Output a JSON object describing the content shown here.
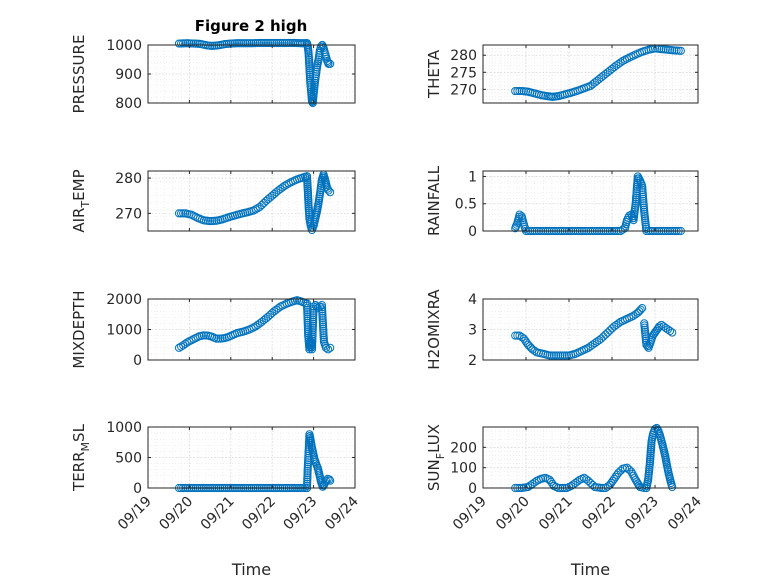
{
  "figure_title": "Figure 2 high",
  "colors": {
    "marker": "#0072BD",
    "axis": "#262626",
    "grid": "#d9d9d9",
    "background": "#ffffff"
  },
  "chart_data": [
    {
      "type": "scatter",
      "id": "pressure",
      "ylabel": "PRESSURE",
      "ylabel_sub": "",
      "ylim": [
        800,
        1000
      ],
      "yticks": [
        800,
        900,
        1000
      ],
      "ytick_labels": [
        "800",
        "900",
        "1000"
      ],
      "xlim": [
        0,
        5
      ],
      "xticks": [
        0,
        1,
        2,
        3,
        4,
        5
      ],
      "xtick_labels": [
        "09/19",
        "09/20",
        "09/21",
        "09/22",
        "09/23",
        "09/24"
      ],
      "xticks_visible": false,
      "xlabel": "",
      "grid": "dotted",
      "segments": [
        {
          "x": [
            0.75,
            0.95,
            1.1,
            1.25,
            1.35,
            1.45,
            1.55,
            1.65,
            1.75,
            1.85,
            2.0,
            2.15,
            2.3,
            2.5,
            2.7,
            2.9,
            3.1,
            3.3,
            3.5,
            3.72,
            3.84
          ],
          "y": [
            1005,
            1006,
            1005,
            1004,
            1001,
            998,
            997,
            998,
            1000,
            1003,
            1005,
            1006,
            1006,
            1006,
            1007,
            1007,
            1007,
            1007,
            1007,
            1006,
            1006
          ]
        },
        {
          "x": [
            3.84,
            3.86,
            3.88,
            3.9,
            3.92,
            3.94,
            3.96,
            3.98,
            4.0,
            4.03,
            4.06,
            4.09,
            4.12,
            4.15,
            4.18,
            4.21,
            4.24,
            4.27,
            4.3,
            4.33,
            4.36,
            4.4
          ],
          "y": [
            1006,
            995,
            970,
            920,
            870,
            840,
            808,
            800,
            830,
            870,
            900,
            930,
            950,
            980,
            995,
            1000,
            990,
            975,
            960,
            945,
            935,
            935
          ]
        }
      ]
    },
    {
      "type": "scatter",
      "id": "theta",
      "ylabel": "THETA",
      "ylabel_sub": "",
      "ylim": [
        266,
        283
      ],
      "yticks": [
        270,
        275,
        280
      ],
      "ytick_labels": [
        "270",
        "275",
        "280"
      ],
      "xlim": [
        0,
        5
      ],
      "xticks": [
        0,
        1,
        2,
        3,
        4,
        5
      ],
      "xtick_labels": [
        "09/19",
        "09/20",
        "09/21",
        "09/22",
        "09/23",
        "09/24"
      ],
      "xticks_visible": false,
      "xlabel": "",
      "grid": "dotted",
      "segments": [
        {
          "x": [
            0.75,
            0.9,
            1.05,
            1.2,
            1.35,
            1.5,
            1.62,
            1.75,
            1.9,
            2.05,
            2.2,
            2.35,
            2.5,
            2.65,
            2.8,
            2.95,
            3.1,
            3.25,
            3.4,
            3.55,
            3.7,
            3.85,
            4.0,
            4.15,
            4.3,
            4.45,
            4.6
          ],
          "y": [
            269.5,
            269.5,
            269.3,
            268.8,
            268.3,
            268.0,
            267.8,
            268.0,
            268.5,
            269.0,
            269.6,
            270.3,
            271.0,
            272.5,
            274.0,
            275.5,
            277.0,
            278.3,
            279.3,
            280.2,
            281.0,
            281.6,
            282.0,
            281.8,
            281.6,
            281.4,
            281.3
          ]
        }
      ]
    },
    {
      "type": "scatter",
      "id": "air_temp",
      "ylabel": "AIR",
      "ylabel_sub": "T",
      "ylabel_rest": "EMP",
      "ylim": [
        265,
        282
      ],
      "yticks": [
        270,
        280
      ],
      "ytick_labels": [
        "270",
        "280"
      ],
      "xlim": [
        0,
        5
      ],
      "xticks": [
        0,
        1,
        2,
        3,
        4,
        5
      ],
      "xtick_labels": [
        "09/19",
        "09/20",
        "09/21",
        "09/22",
        "09/23",
        "09/24"
      ],
      "xticks_visible": false,
      "xlabel": "",
      "grid": "dotted",
      "segments": [
        {
          "x": [
            0.75,
            0.9,
            1.05,
            1.2,
            1.35,
            1.5,
            1.65,
            1.8,
            1.95,
            2.1,
            2.25,
            2.4,
            2.55,
            2.7,
            2.85,
            3.0,
            3.15,
            3.3,
            3.45,
            3.6,
            3.75,
            3.84
          ],
          "y": [
            270.0,
            270.0,
            269.6,
            268.7,
            268.0,
            267.8,
            267.9,
            268.3,
            268.9,
            269.4,
            269.9,
            270.3,
            270.8,
            271.8,
            273.5,
            275.0,
            276.5,
            277.8,
            278.8,
            279.6,
            280.2,
            280.5
          ]
        },
        {
          "x": [
            3.84,
            3.86,
            3.88,
            3.9,
            3.93,
            3.96,
            4.0,
            4.04,
            4.08,
            4.12,
            4.16,
            4.2,
            4.24,
            4.28,
            4.32,
            4.36,
            4.4
          ],
          "y": [
            280.5,
            276.5,
            272.0,
            268.5,
            266.5,
            265.3,
            266.5,
            268.5,
            270.5,
            273.0,
            276.0,
            279.5,
            281.0,
            279.5,
            277.5,
            276.5,
            276.0
          ]
        }
      ]
    },
    {
      "type": "scatter",
      "id": "rainfall",
      "ylabel": "RAINFALL",
      "ylabel_sub": "",
      "ylim": [
        0,
        1.1
      ],
      "yticks": [
        0,
        0.5,
        1
      ],
      "ytick_labels": [
        "0",
        "0.5",
        "1"
      ],
      "xlim": [
        0,
        5
      ],
      "xticks": [
        0,
        1,
        2,
        3,
        4,
        5
      ],
      "xtick_labels": [
        "09/19",
        "09/20",
        "09/21",
        "09/22",
        "09/23",
        "09/24"
      ],
      "xticks_visible": false,
      "xlabel": "",
      "grid": "dotted",
      "segments": [
        {
          "x": [
            0.75,
            0.8,
            0.85,
            0.9,
            0.95,
            1.0,
            1.5,
            2.0,
            2.5,
            3.0,
            3.2,
            3.3,
            3.35,
            3.4,
            3.45,
            3.5,
            3.55,
            3.6,
            3.65,
            3.7,
            3.75,
            3.8,
            3.85,
            4.0,
            4.2,
            4.4,
            4.6
          ],
          "y": [
            0.05,
            0.15,
            0.3,
            0.27,
            0.12,
            0.0,
            0.0,
            0.0,
            0.0,
            0.0,
            0.0,
            0.05,
            0.2,
            0.28,
            0.3,
            0.2,
            0.5,
            1.0,
            0.93,
            0.83,
            0.35,
            0.0,
            0.0,
            0.0,
            0.0,
            0.0,
            0.0
          ]
        }
      ]
    },
    {
      "type": "scatter",
      "id": "mixdepth",
      "ylabel": "MIXDEPTH",
      "ylabel_sub": "",
      "ylim": [
        0,
        2000
      ],
      "yticks": [
        0,
        1000,
        2000
      ],
      "ytick_labels": [
        "0",
        "1000",
        "2000"
      ],
      "xlim": [
        0,
        5
      ],
      "xticks": [
        0,
        1,
        2,
        3,
        4,
        5
      ],
      "xtick_labels": [
        "09/19",
        "09/20",
        "09/21",
        "09/22",
        "09/23",
        "09/24"
      ],
      "xticks_visible": false,
      "xlabel": "",
      "grid": "dotted",
      "segments": [
        {
          "x": [
            0.75,
            0.85,
            0.95,
            1.05,
            1.15,
            1.25,
            1.35,
            1.45,
            1.55,
            1.65,
            1.75,
            1.85,
            1.95,
            2.05,
            2.15,
            2.3,
            2.45,
            2.6,
            2.75,
            2.9,
            3.05,
            3.2,
            3.35,
            3.5,
            3.6,
            3.7,
            3.8
          ],
          "y": [
            400,
            480,
            580,
            650,
            720,
            780,
            810,
            800,
            760,
            700,
            700,
            720,
            760,
            820,
            880,
            930,
            1000,
            1100,
            1250,
            1420,
            1600,
            1750,
            1850,
            1920,
            1960,
            1920,
            1860
          ]
        },
        {
          "x": [
            3.84,
            3.87,
            3.9,
            3.93,
            3.96,
            4.0,
            4.05,
            4.1,
            4.15,
            4.2,
            4.25,
            4.3,
            4.35,
            4.4
          ],
          "y": [
            1850,
            800,
            350,
            600,
            350,
            1750,
            1800,
            1700,
            1750,
            1800,
            600,
            400,
            350,
            400
          ]
        }
      ]
    },
    {
      "type": "scatter",
      "id": "h2omixra",
      "ylabel": "H2OMIXRA",
      "ylabel_sub": "",
      "ylim": [
        2,
        4
      ],
      "yticks": [
        2,
        3,
        4
      ],
      "ytick_labels": [
        "2",
        "3",
        "4"
      ],
      "xlim": [
        0,
        5
      ],
      "xticks": [
        0,
        1,
        2,
        3,
        4,
        5
      ],
      "xtick_labels": [
        "09/19",
        "09/20",
        "09/21",
        "09/22",
        "09/23",
        "09/24"
      ],
      "xticks_visible": false,
      "xlabel": "",
      "grid": "dotted",
      "segments": [
        {
          "x": [
            0.75,
            0.85,
            0.95,
            1.05,
            1.15,
            1.25,
            1.4,
            1.55,
            1.7,
            1.85,
            2.0,
            2.15,
            2.3,
            2.45,
            2.6,
            2.75,
            2.9,
            3.05,
            3.2,
            3.35,
            3.5,
            3.6,
            3.7
          ],
          "y": [
            2.8,
            2.8,
            2.7,
            2.5,
            2.35,
            2.25,
            2.2,
            2.15,
            2.15,
            2.15,
            2.15,
            2.2,
            2.3,
            2.4,
            2.55,
            2.7,
            2.9,
            3.1,
            3.25,
            3.35,
            3.45,
            3.55,
            3.7
          ]
        },
        {
          "x": [
            3.75,
            3.8,
            3.85,
            3.9,
            3.95,
            4.0,
            4.05,
            4.1,
            4.15,
            4.2,
            4.25,
            4.3,
            4.35,
            4.4
          ],
          "y": [
            3.2,
            2.5,
            2.4,
            2.6,
            2.8,
            2.9,
            3.0,
            3.1,
            3.15,
            3.1,
            3.05,
            3.0,
            2.95,
            2.9
          ]
        }
      ]
    },
    {
      "type": "scatter",
      "id": "terr_msl",
      "ylabel": "TERR",
      "ylabel_sub": "M",
      "ylabel_rest": "SL",
      "ylim": [
        0,
        1000
      ],
      "yticks": [
        0,
        500,
        1000
      ],
      "ytick_labels": [
        "0",
        "500",
        "1000"
      ],
      "xlim": [
        0,
        5
      ],
      "xticks": [
        0,
        1,
        2,
        3,
        4,
        5
      ],
      "xtick_labels": [
        "09/19",
        "09/20",
        "09/21",
        "09/22",
        "09/23",
        "09/24"
      ],
      "xticks_visible": true,
      "xlabel": "Time",
      "grid": "dotted",
      "segments": [
        {
          "x": [
            0.75,
            1.0,
            1.5,
            2.0,
            2.5,
            3.0,
            3.5,
            3.84
          ],
          "y": [
            0,
            0,
            0,
            0,
            0,
            0,
            0,
            0
          ]
        },
        {
          "x": [
            3.84,
            3.86,
            3.88,
            3.9,
            3.92,
            3.95,
            3.98,
            4.02,
            4.06,
            4.1,
            4.14,
            4.18,
            4.22,
            4.26,
            4.3,
            4.34,
            4.38,
            4.4
          ],
          "y": [
            0,
            350,
            600,
            880,
            820,
            700,
            600,
            480,
            400,
            330,
            220,
            100,
            20,
            60,
            120,
            150,
            140,
            120
          ]
        }
      ]
    },
    {
      "type": "scatter",
      "id": "sun_flux",
      "ylabel": "SUN",
      "ylabel_sub": "F",
      "ylabel_rest": "LUX",
      "ylim": [
        0,
        300
      ],
      "yticks": [
        0,
        100,
        200
      ],
      "ytick_labels": [
        "0",
        "100",
        "200"
      ],
      "xlim": [
        0,
        5
      ],
      "xticks": [
        0,
        1,
        2,
        3,
        4,
        5
      ],
      "xtick_labels": [
        "09/19",
        "09/20",
        "09/21",
        "09/22",
        "09/23",
        "09/24"
      ],
      "xticks_visible": true,
      "xlabel": "Time",
      "grid": "dotted",
      "segments": [
        {
          "x": [
            0.75,
            0.9,
            1.05,
            1.15,
            1.25,
            1.35,
            1.45,
            1.55,
            1.65,
            1.75,
            1.85,
            1.95,
            2.05,
            2.15,
            2.25,
            2.35,
            2.45,
            2.6,
            2.75,
            2.85,
            2.95,
            3.05,
            3.15,
            3.25,
            3.35,
            3.45,
            3.55,
            3.65,
            3.75,
            3.8
          ],
          "y": [
            0,
            0,
            5,
            20,
            35,
            45,
            50,
            40,
            10,
            0,
            0,
            0,
            10,
            25,
            40,
            50,
            35,
            5,
            0,
            0,
            15,
            45,
            75,
            95,
            100,
            80,
            40,
            5,
            0,
            0
          ]
        },
        {
          "x": [
            3.8,
            3.84,
            3.88,
            3.92,
            3.96,
            4.0,
            4.04,
            4.08,
            4.12,
            4.16,
            4.2,
            4.24,
            4.28,
            4.32,
            4.36,
            4.4
          ],
          "y": [
            0,
            40,
            120,
            230,
            270,
            290,
            295,
            280,
            255,
            225,
            190,
            155,
            110,
            70,
            35,
            5
          ]
        }
      ]
    }
  ]
}
